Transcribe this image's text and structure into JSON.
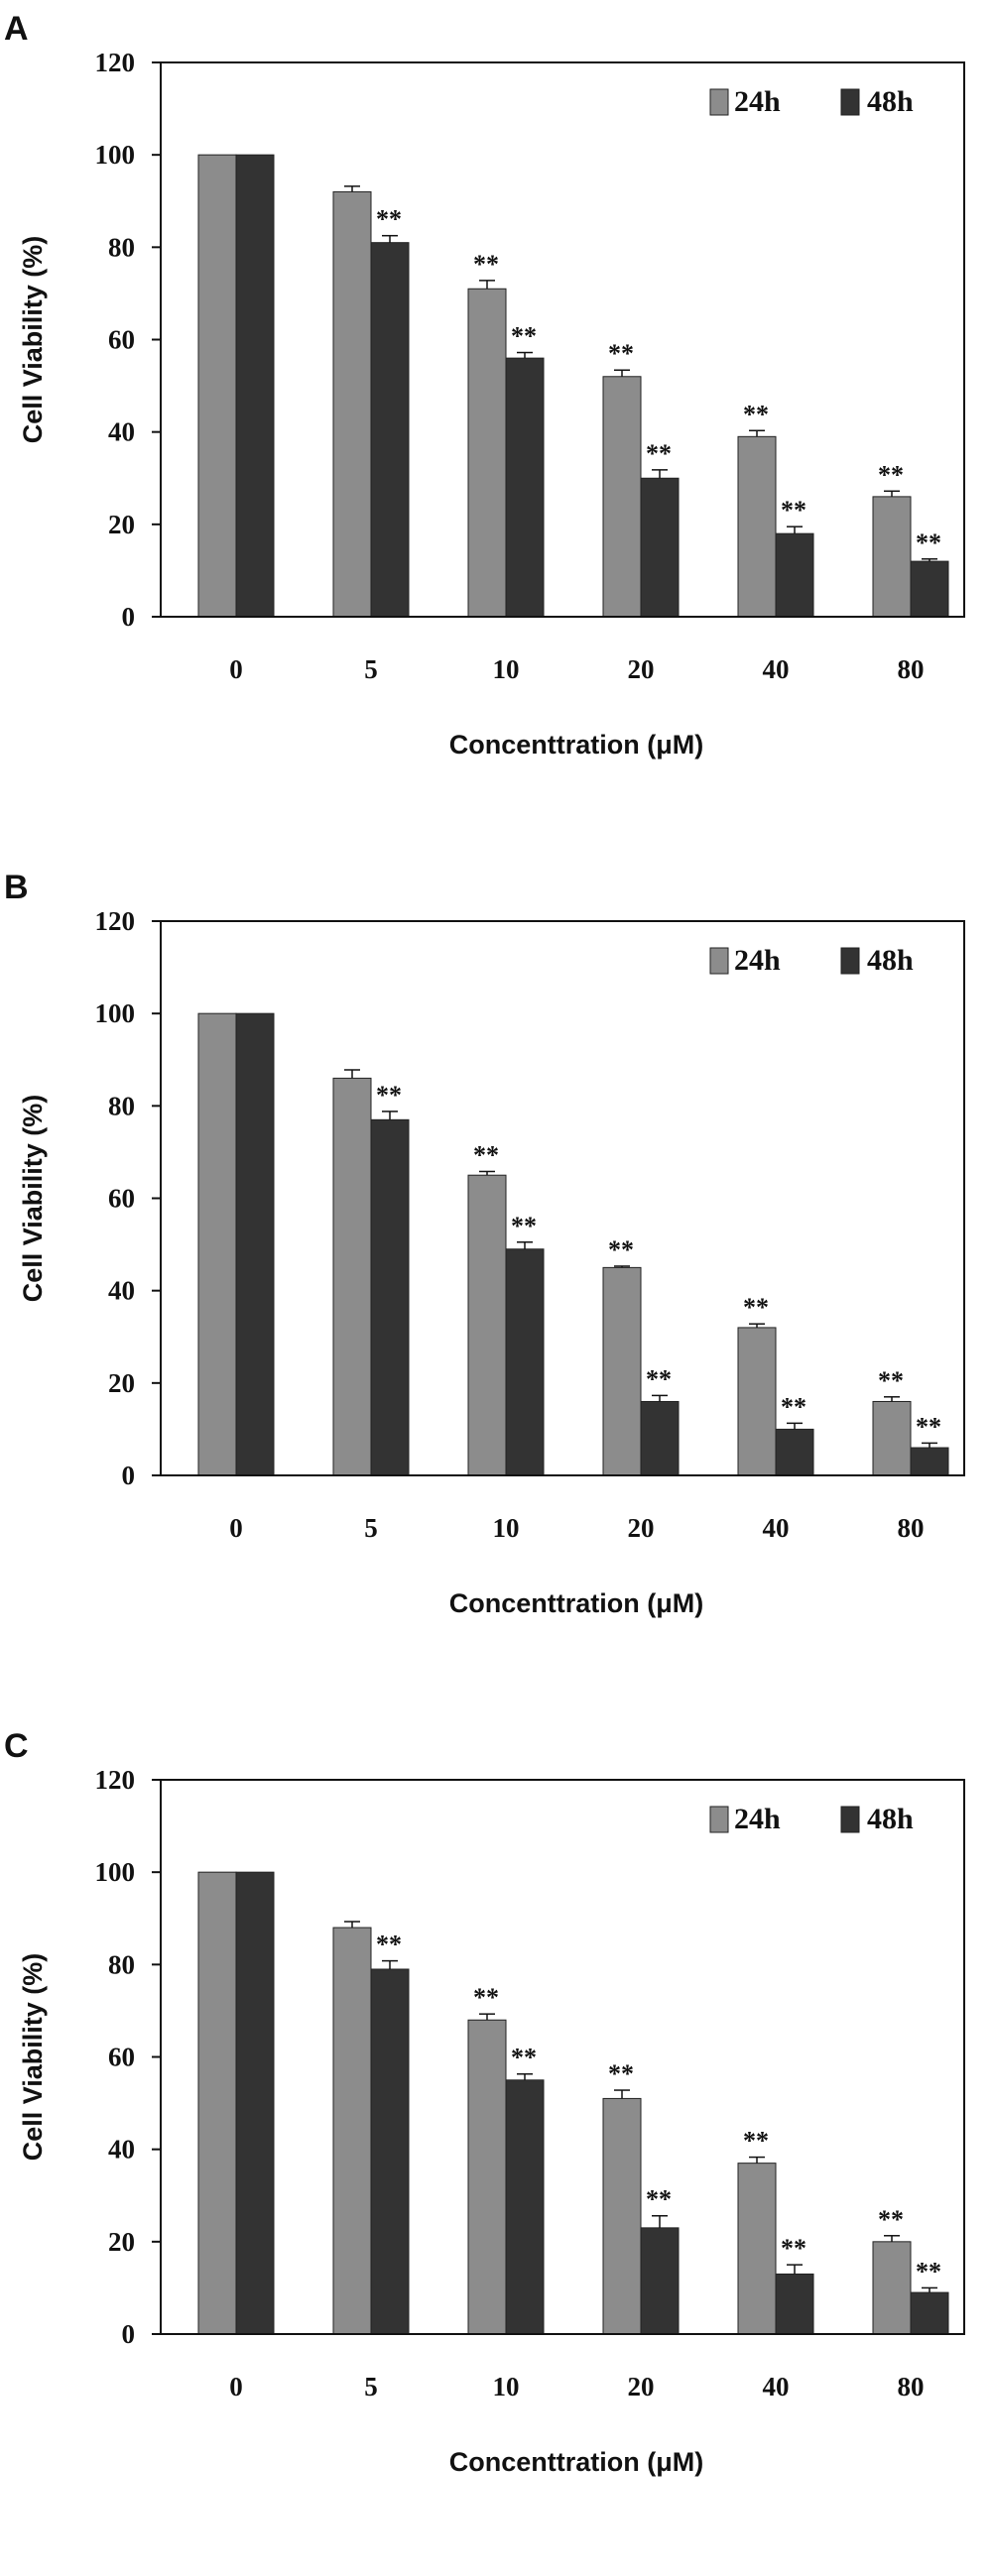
{
  "colors": {
    "h24": "#8c8c8c",
    "h48": "#333333",
    "axis": "#111111"
  },
  "chart_data": [
    {
      "type": "bar",
      "panel_label": "A",
      "categories": [
        "0",
        "5",
        "10",
        "20",
        "40",
        "80"
      ],
      "series": [
        {
          "name": "24h",
          "values": [
            100,
            92,
            71,
            52,
            39,
            26
          ],
          "errors": [
            0,
            1.2,
            1.8,
            1.4,
            1.3,
            1.2
          ],
          "sig": [
            "",
            "",
            "**",
            "**",
            "**",
            "**"
          ]
        },
        {
          "name": "48h",
          "values": [
            100,
            81,
            56,
            30,
            18,
            12
          ],
          "errors": [
            0,
            1.5,
            1.2,
            1.8,
            1.5,
            0.5
          ],
          "sig": [
            "",
            "**",
            "**",
            "**",
            "**",
            "**"
          ]
        }
      ],
      "xlabel": "Concenttration (μM)",
      "ylabel": "Cell Viability (%)",
      "ylim": [
        0,
        120
      ],
      "yticks": [
        "0",
        "20",
        "40",
        "60",
        "80",
        "100",
        "120"
      ],
      "legend": "top-right",
      "grid": false
    },
    {
      "type": "bar",
      "panel_label": "B",
      "categories": [
        "0",
        "5",
        "10",
        "20",
        "40",
        "80"
      ],
      "series": [
        {
          "name": "24h",
          "values": [
            100,
            86,
            65,
            45,
            32,
            16
          ],
          "errors": [
            0,
            1.8,
            0.8,
            0.3,
            0.8,
            1.0
          ],
          "sig": [
            "",
            "",
            "**",
            "**",
            "**",
            "**"
          ]
        },
        {
          "name": "48h",
          "values": [
            100,
            77,
            49,
            16,
            10,
            6
          ],
          "errors": [
            0,
            1.8,
            1.5,
            1.3,
            1.3,
            1.0
          ],
          "sig": [
            "",
            "**",
            "**",
            "**",
            "**",
            "**"
          ]
        }
      ],
      "xlabel": "Concenttration (μM)",
      "ylabel": "Cell Viability (%)",
      "ylim": [
        0,
        120
      ],
      "yticks": [
        "0",
        "20",
        "40",
        "60",
        "80",
        "100",
        "120"
      ],
      "legend": "top-right",
      "grid": false
    },
    {
      "type": "bar",
      "panel_label": "C",
      "categories": [
        "0",
        "5",
        "10",
        "20",
        "40",
        "80"
      ],
      "series": [
        {
          "name": "24h",
          "values": [
            100,
            88,
            68,
            51,
            37,
            20
          ],
          "errors": [
            0,
            1.3,
            1.3,
            1.8,
            1.3,
            1.3
          ],
          "sig": [
            "",
            "",
            "**",
            "**",
            "**",
            "**"
          ]
        },
        {
          "name": "48h",
          "values": [
            100,
            79,
            55,
            23,
            13,
            9
          ],
          "errors": [
            0,
            1.8,
            1.3,
            2.6,
            2.0,
            1.0
          ],
          "sig": [
            "",
            "**",
            "**",
            "**",
            "**",
            "**"
          ]
        }
      ],
      "xlabel": "Concenttration (μM)",
      "ylabel": "Cell Viability (%)",
      "ylim": [
        0,
        120
      ],
      "yticks": [
        "0",
        "20",
        "40",
        "60",
        "80",
        "100",
        "120"
      ],
      "legend": "top-right",
      "grid": false
    }
  ]
}
